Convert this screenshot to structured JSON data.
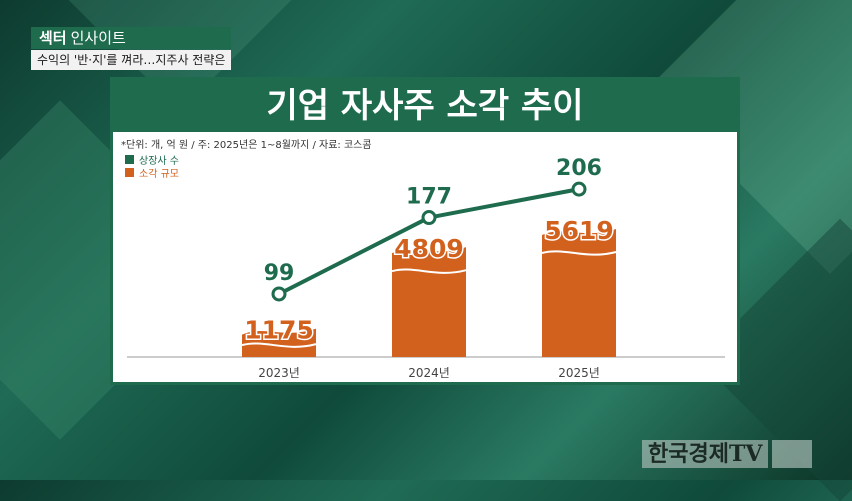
{
  "header": {
    "program_bold": "섹터",
    "program_rest": "인사이트",
    "headline": "수익의 '반·지'를 껴라…지주사 전략은"
  },
  "card": {
    "title": "기업 자사주 소각 추이",
    "note": "*단위: 개, 억 원 / 주: 2025년은 1~8월까지 / 자료: 코스콤"
  },
  "watermark": {
    "text": "한국경제TV"
  },
  "colors": {
    "green": "#1e6b4e",
    "orange": "#d2611e"
  },
  "chart_data": {
    "type": "bar",
    "categories": [
      "2023년",
      "2024년",
      "2025년"
    ],
    "series": [
      {
        "name": "상장사 수",
        "type": "line",
        "color": "#1e6b4e",
        "values": [
          99,
          177,
          206
        ]
      },
      {
        "name": "소각 규모",
        "type": "bar",
        "color": "#d2611e",
        "values": [
          1175,
          4809,
          5619
        ]
      }
    ],
    "legend": "top-left",
    "grid": false
  }
}
